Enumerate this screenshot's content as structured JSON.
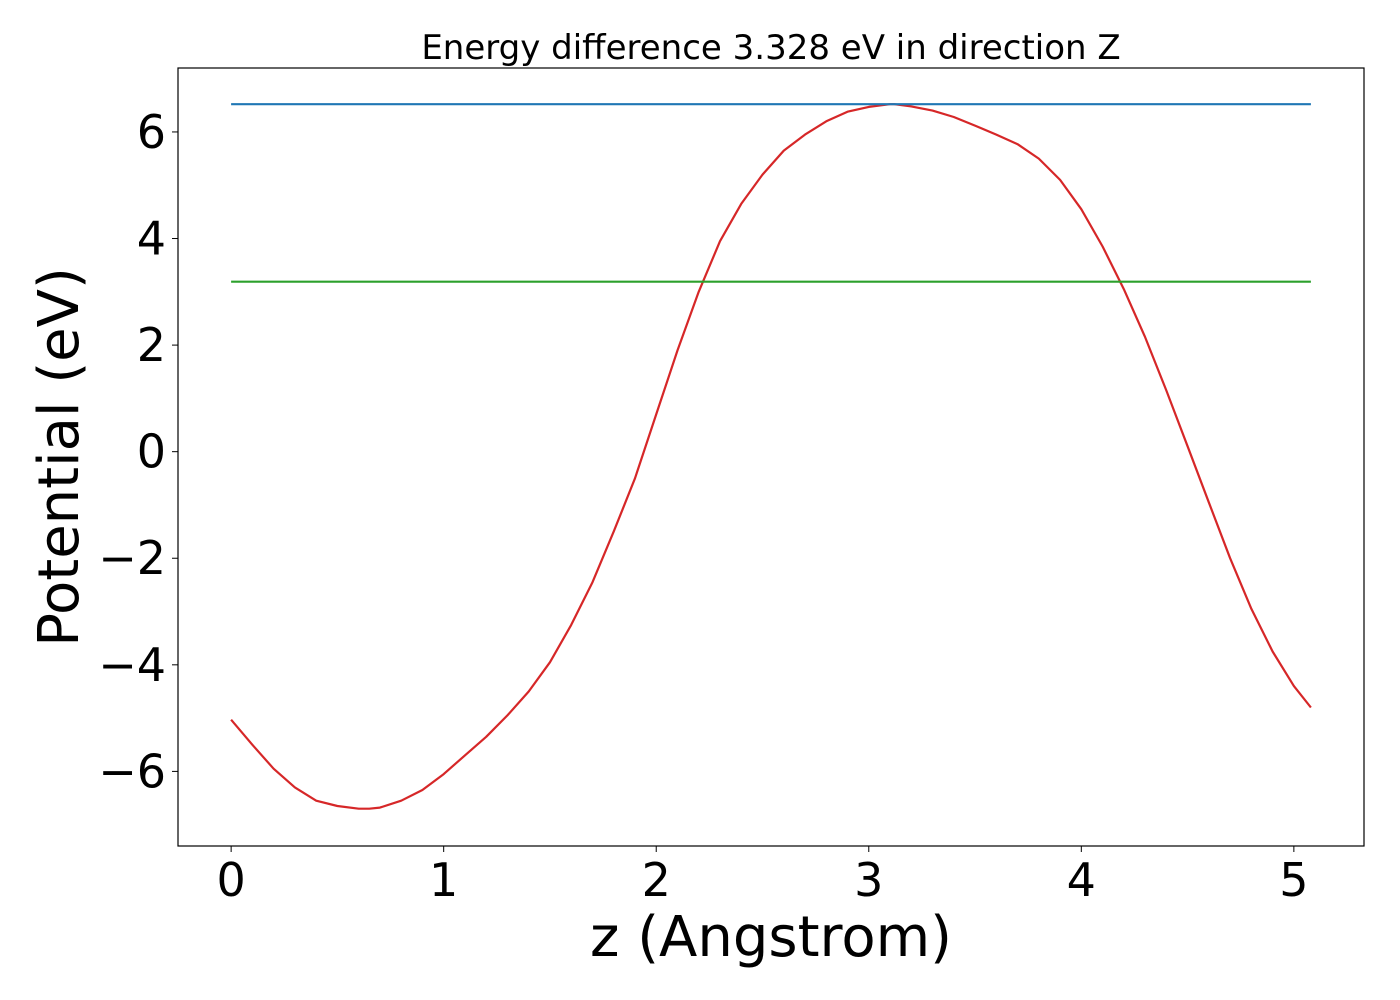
{
  "chart_data": {
    "type": "line",
    "title": "Energy difference 3.328 eV in direction Z",
    "xlabel": "z (Angstrom)",
    "ylabel": "Potential (eV)",
    "xlim": [
      -0.25,
      5.33
    ],
    "ylim": [
      -7.4,
      7.2
    ],
    "xticks": [
      0,
      1,
      2,
      3,
      4,
      5
    ],
    "xtick_labels": [
      "0",
      "1",
      "2",
      "3",
      "4",
      "5"
    ],
    "yticks": [
      -6,
      -4,
      -2,
      0,
      2,
      4,
      6
    ],
    "ytick_labels": [
      "−6",
      "−4",
      "−2",
      "0",
      "2",
      "4",
      "6"
    ],
    "grid": false,
    "legend": "none",
    "series": [
      {
        "color": "#d62728",
        "x": [
          0,
          0.1,
          0.2,
          0.3,
          0.4,
          0.5,
          0.6,
          0.65,
          0.7,
          0.8,
          0.9,
          1.0,
          1.1,
          1.2,
          1.3,
          1.4,
          1.5,
          1.6,
          1.7,
          1.8,
          1.9,
          2.0,
          2.1,
          2.2,
          2.3,
          2.4,
          2.5,
          2.6,
          2.7,
          2.8,
          2.9,
          3.0,
          3.1,
          3.12,
          3.2,
          3.3,
          3.4,
          3.5,
          3.6,
          3.7,
          3.8,
          3.9,
          4.0,
          4.1,
          4.2,
          4.3,
          4.4,
          4.5,
          4.6,
          4.7,
          4.8,
          4.9,
          5.0,
          5.08
        ],
        "y": [
          -5.03,
          -5.5,
          -5.95,
          -6.3,
          -6.55,
          -6.65,
          -6.7,
          -6.7,
          -6.68,
          -6.55,
          -6.35,
          -6.05,
          -5.7,
          -5.35,
          -4.95,
          -4.5,
          -3.95,
          -3.25,
          -2.45,
          -1.5,
          -0.5,
          0.7,
          1.9,
          3.0,
          3.95,
          4.65,
          5.2,
          5.65,
          5.95,
          6.2,
          6.38,
          6.47,
          6.52,
          6.52,
          6.48,
          6.4,
          6.28,
          6.12,
          5.95,
          5.77,
          5.5,
          5.1,
          4.55,
          3.85,
          3.05,
          2.15,
          1.15,
          0.1,
          -0.95,
          -2.0,
          -2.95,
          -3.75,
          -4.4,
          -4.8
        ]
      },
      {
        "color": "#1f77b4",
        "x": [
          0,
          5.08
        ],
        "y": [
          6.52,
          6.52
        ]
      },
      {
        "color": "#2ca02c",
        "x": [
          0,
          5.08
        ],
        "y": [
          3.19,
          3.19
        ]
      }
    ]
  }
}
